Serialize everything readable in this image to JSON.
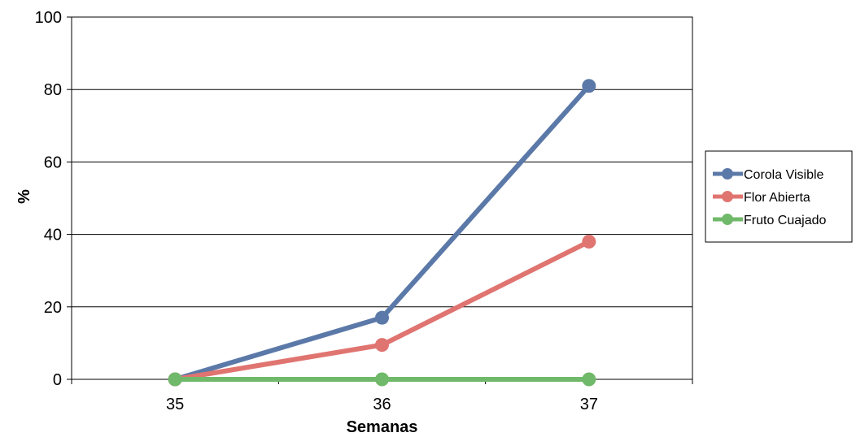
{
  "chart_data": {
    "type": "line",
    "title": "",
    "xlabel": "Semanas",
    "ylabel": "%",
    "categories": [
      "35",
      "36",
      "37"
    ],
    "ylim": [
      0,
      100
    ],
    "yticks": [
      "0",
      "20",
      "40",
      "60",
      "80",
      "100"
    ],
    "grid": "horizontal",
    "legend_position": "right",
    "series": [
      {
        "name": "Corola Visible",
        "color": "#5b79a8",
        "values": [
          0,
          17,
          81
        ]
      },
      {
        "name": "Flor Abierta",
        "color": "#e07470",
        "values": [
          0,
          9.5,
          38
        ]
      },
      {
        "name": "Fruto Cuajado",
        "color": "#71b96a",
        "values": [
          0,
          0,
          0
        ]
      }
    ]
  }
}
